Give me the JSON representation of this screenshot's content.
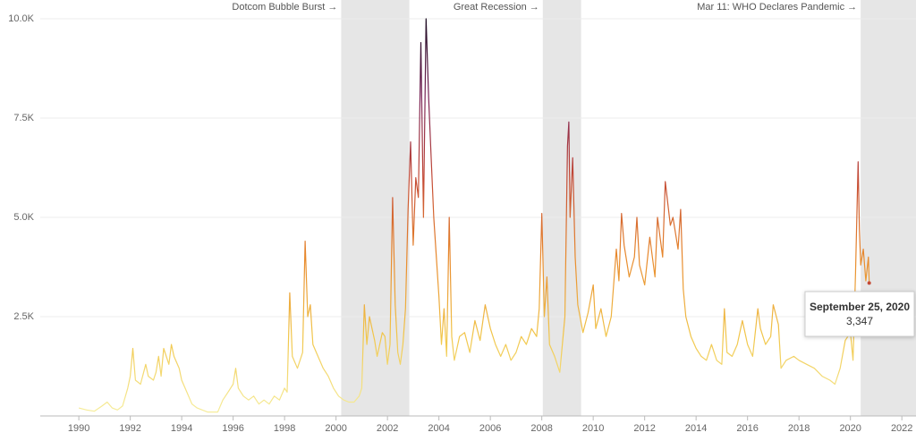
{
  "chart_data": {
    "type": "line",
    "xlim": [
      1988.5,
      2022.55
    ],
    "xticks": [
      1990,
      1992,
      1994,
      1996,
      1998,
      2000,
      2002,
      2004,
      2006,
      2008,
      2010,
      2012,
      2014,
      2016,
      2018,
      2020,
      2022
    ],
    "ylim": [
      0,
      10000
    ],
    "yticks": [
      {
        "value": 2500,
        "label": "2.5K"
      },
      {
        "value": 5000,
        "label": "5.0K"
      },
      {
        "value": 7500,
        "label": "7.5K"
      },
      {
        "value": 10000,
        "label": "10.0K"
      }
    ],
    "grid": true,
    "color_scale": [
      "#f6ef9f",
      "#f1c64a",
      "#e8892c",
      "#c44a36",
      "#7a2256",
      "#1b0b22"
    ],
    "bands": [
      {
        "start": 2000.2,
        "end": 2002.85,
        "label": "Dotcom Bubble Burst →"
      },
      {
        "start": 2008.04,
        "end": 2009.53,
        "label": "Great Recession →"
      },
      {
        "start": 2020.4,
        "end": 2022.55,
        "label": "Mar 11: WHO Declares Pandemic →"
      }
    ],
    "band_color": "#e6e6e6",
    "tooltip": {
      "date": "September 25, 2020",
      "value": 3347,
      "label": "3,347",
      "x": 2020.73
    },
    "x": [
      1990.0,
      1990.3,
      1990.6,
      1990.9,
      1991.1,
      1991.3,
      1991.5,
      1991.7,
      1991.9,
      1992.0,
      1992.1,
      1992.2,
      1992.4,
      1992.6,
      1992.7,
      1992.9,
      1993.0,
      1993.1,
      1993.2,
      1993.3,
      1993.4,
      1993.5,
      1993.6,
      1993.7,
      1993.9,
      1994.0,
      1994.2,
      1994.4,
      1994.6,
      1994.8,
      1995.0,
      1995.2,
      1995.4,
      1995.6,
      1995.8,
      1996.0,
      1996.1,
      1996.2,
      1996.4,
      1996.6,
      1996.8,
      1997.0,
      1997.2,
      1997.4,
      1997.6,
      1997.8,
      1998.0,
      1998.1,
      1998.2,
      1998.3,
      1998.5,
      1998.7,
      1998.8,
      1998.9,
      1999.0,
      1999.1,
      1999.3,
      1999.5,
      1999.7,
      1999.9,
      2000.1,
      2000.3,
      2000.5,
      2000.7,
      2000.9,
      2001.0,
      2001.1,
      2001.2,
      2001.3,
      2001.5,
      2001.6,
      2001.8,
      2001.9,
      2002.0,
      2002.1,
      2002.2,
      2002.3,
      2002.4,
      2002.5,
      2002.6,
      2002.7,
      2002.8,
      2002.9,
      2003.0,
      2003.1,
      2003.2,
      2003.3,
      2003.4,
      2003.5,
      2003.6,
      2003.7,
      2003.8,
      2003.9,
      2004.0,
      2004.1,
      2004.2,
      2004.3,
      2004.4,
      2004.5,
      2004.6,
      2004.8,
      2005.0,
      2005.2,
      2005.4,
      2005.6,
      2005.8,
      2006.0,
      2006.2,
      2006.4,
      2006.6,
      2006.8,
      2007.0,
      2007.2,
      2007.4,
      2007.6,
      2007.8,
      2007.9,
      2008.0,
      2008.1,
      2008.2,
      2008.3,
      2008.5,
      2008.7,
      2008.9,
      2009.0,
      2009.05,
      2009.1,
      2009.2,
      2009.3,
      2009.4,
      2009.6,
      2009.8,
      2010.0,
      2010.1,
      2010.3,
      2010.5,
      2010.7,
      2010.9,
      2011.0,
      2011.1,
      2011.2,
      2011.4,
      2011.6,
      2011.7,
      2011.8,
      2012.0,
      2012.2,
      2012.4,
      2012.5,
      2012.7,
      2012.8,
      2013.0,
      2013.1,
      2013.3,
      2013.4,
      2013.5,
      2013.6,
      2013.8,
      2014.0,
      2014.2,
      2014.4,
      2014.6,
      2014.8,
      2015.0,
      2015.1,
      2015.2,
      2015.4,
      2015.6,
      2015.8,
      2016.0,
      2016.2,
      2016.4,
      2016.5,
      2016.7,
      2016.9,
      2017.0,
      2017.2,
      2017.3,
      2017.5,
      2017.8,
      2018.0,
      2018.3,
      2018.6,
      2018.9,
      2019.2,
      2019.4,
      2019.6,
      2019.8,
      2020.0,
      2020.1,
      2020.2,
      2020.3,
      2020.35,
      2020.4,
      2020.5,
      2020.6,
      2020.7,
      2020.73
    ],
    "values": [
      200,
      150,
      120,
      250,
      350,
      200,
      150,
      250,
      700,
      1000,
      1700,
      900,
      800,
      1300,
      1000,
      900,
      1100,
      1500,
      1000,
      1700,
      1500,
      1300,
      1800,
      1500,
      1200,
      900,
      600,
      300,
      200,
      150,
      100,
      100,
      100,
      400,
      600,
      800,
      1200,
      700,
      500,
      400,
      500,
      300,
      400,
      300,
      500,
      400,
      700,
      600,
      3100,
      1500,
      1200,
      1600,
      4400,
      2500,
      2800,
      1800,
      1500,
      1200,
      1000,
      700,
      500,
      400,
      350,
      350,
      500,
      700,
      2800,
      1800,
      2500,
      1900,
      1500,
      2100,
      2000,
      1300,
      1800,
      5500,
      2800,
      1600,
      1300,
      1800,
      2700,
      5200,
      6900,
      4300,
      6000,
      5500,
      9400,
      5000,
      10000,
      8000,
      6500,
      5000,
      4000,
      3000,
      1800,
      2700,
      1500,
      5000,
      2000,
      1400,
      2000,
      2100,
      1600,
      2400,
      1900,
      2800,
      2200,
      1800,
      1500,
      1800,
      1400,
      1600,
      2000,
      1800,
      2200,
      2000,
      2700,
      5100,
      2500,
      3500,
      1800,
      1500,
      1100,
      2500,
      6800,
      7400,
      5000,
      6500,
      4000,
      2800,
      2100,
      2600,
      3300,
      2200,
      2700,
      2000,
      2500,
      4200,
      3400,
      5100,
      4300,
      3500,
      4000,
      5000,
      3800,
      3300,
      4500,
      3500,
      5000,
      4000,
      5900,
      4800,
      5000,
      4200,
      5200,
      3200,
      2500,
      2000,
      1700,
      1500,
      1400,
      1800,
      1400,
      1300,
      2700,
      1600,
      1500,
      1800,
      2400,
      1800,
      1500,
      2700,
      2200,
      1800,
      2000,
      2800,
      2300,
      1200,
      1400,
      1500,
      1400,
      1300,
      1200,
      1000,
      900,
      800,
      1200,
      1900,
      2100,
      1400,
      3600,
      6400,
      4700,
      3800,
      4200,
      3400,
      4000,
      3347
    ]
  }
}
